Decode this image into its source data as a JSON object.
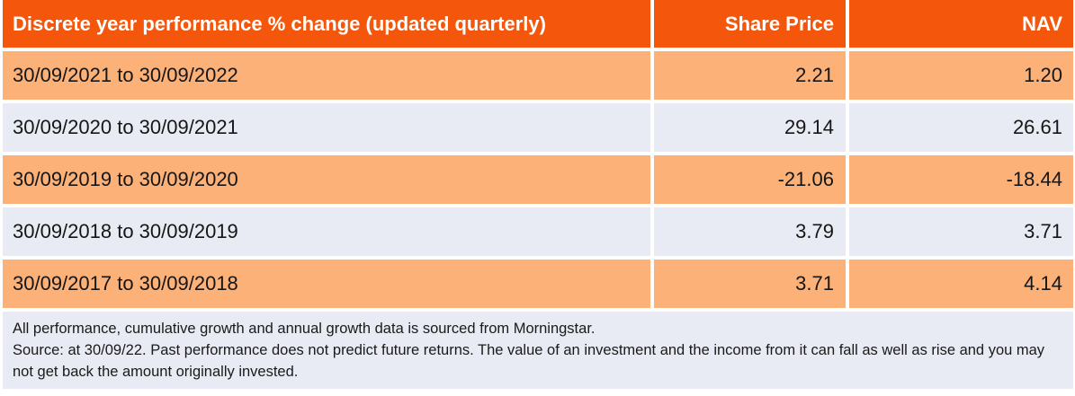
{
  "table": {
    "header": {
      "title": "Discrete year performance % change (updated quarterly)",
      "col_share_price": "Share Price",
      "col_nav": "NAV"
    },
    "rows": [
      {
        "period": "30/09/2021 to 30/09/2022",
        "share_price": "2.21",
        "nav": "1.20"
      },
      {
        "period": "30/09/2020 to 30/09/2021",
        "share_price": "29.14",
        "nav": "26.61"
      },
      {
        "period": "30/09/2019 to 30/09/2020",
        "share_price": "-21.06",
        "nav": "-18.44"
      },
      {
        "period": "30/09/2018 to 30/09/2019",
        "share_price": "3.79",
        "nav": "3.71"
      },
      {
        "period": "30/09/2017 to 30/09/2018",
        "share_price": "3.71",
        "nav": "4.14"
      }
    ]
  },
  "footnote": {
    "line1": "All performance, cumulative growth and annual growth data is sourced from Morningstar.",
    "line2": "Source: at 30/09/22. Past performance does not predict future returns. The value of an investment and the income from it can fall as well as rise and you may not get back the amount originally invested."
  },
  "colors": {
    "header_bg": "#F4570B",
    "row_orange": "#FBB178",
    "row_lavender": "#E9EBF4",
    "header_text": "#FFFFFF",
    "body_text": "#161616"
  }
}
